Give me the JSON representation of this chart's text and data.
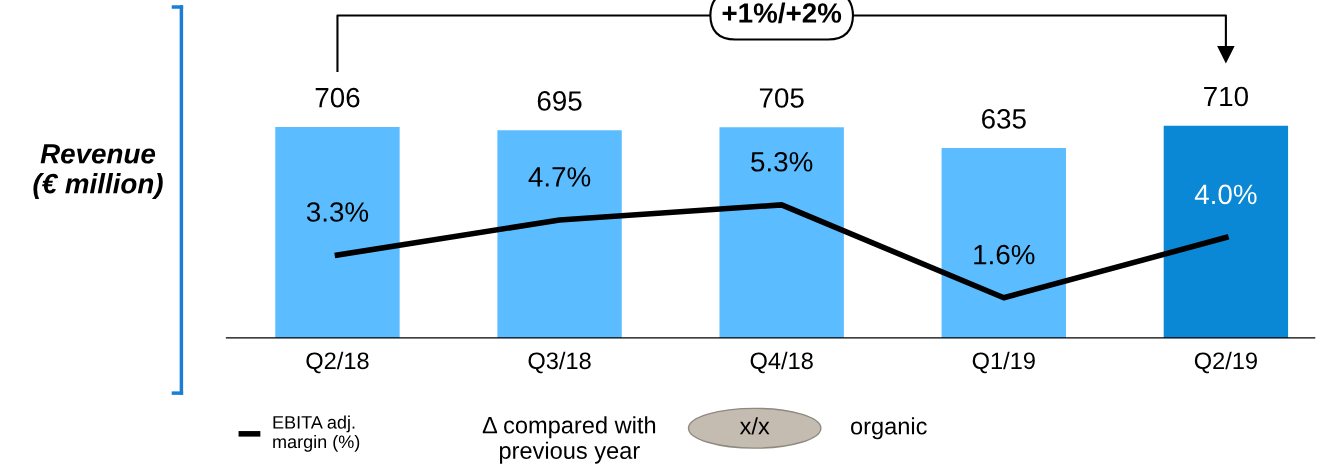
{
  "chart_data": {
    "type": "bar",
    "ylabel": "Revenue\n(€ million)",
    "categories": [
      "Q2/18",
      "Q3/18",
      "Q4/18",
      "Q1/19",
      "Q2/19"
    ],
    "series": [
      {
        "values": [
          706,
          695,
          705,
          635,
          710
        ],
        "colors": [
          "#5bbcff",
          "#5bbcff",
          "#5bbcff",
          "#5bbcff",
          "#0a88d6"
        ]
      },
      {
        "type": "line",
        "axis": "y2",
        "name": "EBITA adj.\nmargin (%)",
        "color": "#000000",
        "values": [
          3.3,
          4.7,
          5.3,
          1.6,
          4.0
        ],
        "value_labels": [
          "3.3%",
          "4.7%",
          "5.3%",
          "1.6%",
          "4.0%"
        ]
      }
    ],
    "data_labels": true,
    "tick_labels": "x",
    "grid": false,
    "legend": "bottom left",
    "marker": "none",
    "line_style": "solid",
    "annotations": [
      "+1%/+2%",
      "Δ compared with\nprevious year",
      "x/x",
      "organic"
    ]
  }
}
